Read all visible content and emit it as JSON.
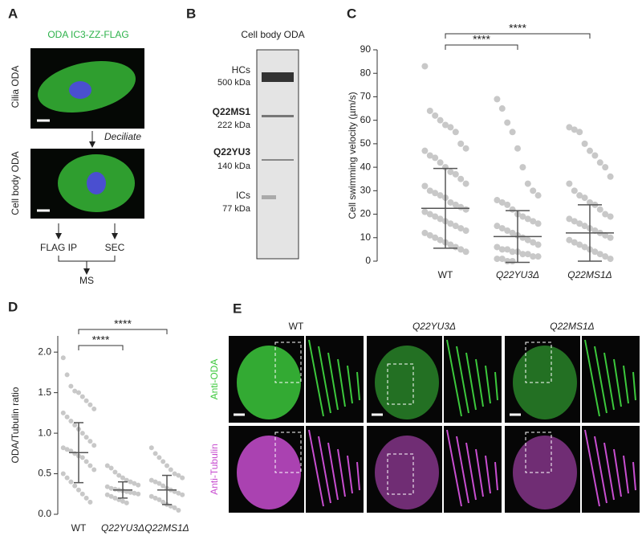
{
  "panels": {
    "A": {
      "letter": "A",
      "stain": "ODA IC3-ZZ-FLAG",
      "top_label": "Cilia ODA",
      "step": "Deciliate",
      "bottom_label": "Cell body ODA",
      "left_method": "FLAG IP",
      "right_method": "SEC",
      "result": "MS"
    },
    "B": {
      "letter": "B",
      "title": "Cell body ODA",
      "bands": [
        {
          "name": "HCs",
          "size": "500 kDa"
        },
        {
          "name": "Q22MS1",
          "size": "222 kDa"
        },
        {
          "name": "Q22YU3",
          "size": "140 kDa"
        },
        {
          "name": "ICs",
          "size": "77 kDa"
        }
      ]
    },
    "E": {
      "letter": "E",
      "columns": [
        "WT",
        "Q22YU3Δ",
        "Q22MS1Δ"
      ],
      "rows": [
        "Anti-ODA",
        "Anti-Tubulin"
      ]
    }
  },
  "chart_data": [
    {
      "type": "strip",
      "letter": "C",
      "ylabel": "Cell swimming velocity (µm/s)",
      "ylim": [
        0,
        90
      ],
      "yticks": [
        0,
        10,
        20,
        30,
        40,
        50,
        60,
        70,
        80,
        90
      ],
      "dot_color": "#c8c8c8",
      "bar_color": "#555555",
      "groups": [
        {
          "label": "WT",
          "mean": 22.5,
          "sd": 17,
          "values": [
            83,
            64,
            62,
            60,
            58,
            57,
            55,
            50,
            48,
            47,
            45,
            44,
            42,
            40,
            38,
            37,
            35,
            33,
            32,
            30,
            29,
            28,
            27,
            25,
            24,
            23,
            22,
            21,
            20,
            19,
            18,
            17,
            16,
            15,
            14,
            13,
            12,
            11,
            10,
            9,
            8,
            7,
            6,
            5,
            4
          ]
        },
        {
          "label": "Q22YU3Δ",
          "mean": 10.5,
          "sd": 11,
          "values": [
            69,
            65,
            59,
            55,
            48,
            40,
            33,
            30,
            28,
            26,
            25,
            24,
            22,
            20,
            19,
            18,
            17,
            16,
            15,
            14,
            13,
            12,
            11,
            10,
            9,
            8,
            7,
            6,
            5,
            5,
            4,
            4,
            3,
            3,
            2,
            2,
            1,
            1,
            0,
            0
          ]
        },
        {
          "label": "Q22MS1Δ",
          "mean": 12,
          "sd": 12,
          "values": [
            57,
            56,
            55,
            50,
            47,
            45,
            42,
            40,
            36,
            33,
            30,
            28,
            27,
            25,
            24,
            22,
            20,
            19,
            18,
            17,
            16,
            15,
            14,
            13,
            12,
            11,
            10,
            9,
            8,
            7,
            6,
            5,
            4,
            3,
            2,
            1
          ]
        }
      ],
      "annotations": [
        {
          "text": "****",
          "between": [
            "WT",
            "Q22MS1Δ"
          ]
        },
        {
          "text": "****",
          "between": [
            "WT",
            "Q22YU3Δ"
          ]
        }
      ]
    },
    {
      "type": "strip",
      "letter": "D",
      "ylabel": "ODA/Tubulin ratio",
      "ylim": [
        0,
        2.2
      ],
      "yticks": [
        {
          "value": 0,
          "label": "0.0"
        },
        0.5,
        {
          "value": 1,
          "label": "1.0"
        },
        1.5,
        {
          "value": 2,
          "label": "2.0"
        }
      ],
      "dot_color": "#c8c8c8",
      "bar_color": "#555555",
      "groups": [
        {
          "label": "WT",
          "mean": 0.76,
          "sd": 0.37,
          "values": [
            1.93,
            1.72,
            1.58,
            1.52,
            1.5,
            1.45,
            1.4,
            1.35,
            1.3,
            1.25,
            1.2,
            1.15,
            1.1,
            1.05,
            1.0,
            0.95,
            0.9,
            0.85,
            0.82,
            0.8,
            0.78,
            0.75,
            0.72,
            0.7,
            0.65,
            0.6,
            0.55,
            0.5,
            0.45,
            0.4,
            0.35,
            0.3,
            0.25,
            0.2,
            0.15
          ]
        },
        {
          "label": "Q22YU3Δ",
          "mean": 0.3,
          "sd": 0.1,
          "values": [
            0.6,
            0.57,
            0.52,
            0.48,
            0.45,
            0.42,
            0.4,
            0.38,
            0.36,
            0.34,
            0.32,
            0.31,
            0.3,
            0.29,
            0.28,
            0.27,
            0.26,
            0.25,
            0.24,
            0.22,
            0.2,
            0.18,
            0.16,
            0.14
          ]
        },
        {
          "label": "Q22MS1Δ",
          "mean": 0.3,
          "sd": 0.18,
          "values": [
            0.82,
            0.75,
            0.7,
            0.65,
            0.6,
            0.55,
            0.5,
            0.48,
            0.45,
            0.42,
            0.4,
            0.38,
            0.35,
            0.32,
            0.3,
            0.28,
            0.26,
            0.24,
            0.22,
            0.2,
            0.18,
            0.15,
            0.12,
            0.1,
            0.08,
            0.05
          ]
        }
      ],
      "annotations": [
        {
          "text": "****",
          "between": [
            "WT",
            "Q22MS1Δ"
          ]
        },
        {
          "text": "****",
          "between": [
            "WT",
            "Q22YU3Δ"
          ]
        }
      ]
    }
  ]
}
